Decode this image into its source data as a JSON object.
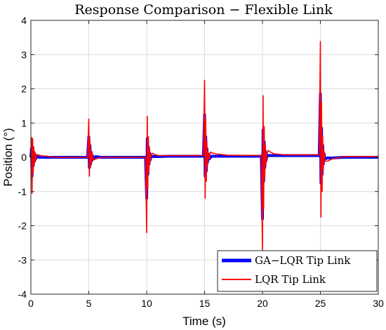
{
  "chart_data": {
    "type": "line",
    "title": "Response Comparison − Flexible Link",
    "xlabel": "Time (s)",
    "ylabel": "Position (°)",
    "xlim": [
      0,
      30
    ],
    "ylim": [
      -4,
      4
    ],
    "xticks": [
      "0",
      "5",
      "10",
      "15",
      "20",
      "25",
      "30"
    ],
    "yticks": [
      "-4",
      "-3",
      "-2",
      "-1",
      "0",
      "1",
      "2",
      "3",
      "4"
    ],
    "grid": true,
    "legend_position": "bottom-right",
    "series": [
      {
        "name": "GA−LQR Tip Link",
        "color": "#0000ff",
        "line_width": "thick",
        "x": [
          0,
          0.05,
          0.1,
          0.15,
          0.2,
          0.25,
          0.3,
          0.35,
          0.4,
          0.5,
          0.7,
          1.0,
          2.0,
          4.9,
          5.0,
          5.05,
          5.1,
          5.15,
          5.2,
          5.25,
          5.3,
          5.4,
          5.6,
          6.0,
          7.0,
          9.9,
          10.0,
          10.05,
          10.1,
          10.15,
          10.2,
          10.25,
          10.3,
          10.4,
          10.6,
          11.0,
          12.0,
          14.9,
          15.0,
          15.05,
          15.1,
          15.15,
          15.2,
          15.25,
          15.3,
          15.4,
          15.6,
          16.0,
          17.0,
          19.9,
          20.0,
          20.05,
          20.1,
          20.15,
          20.2,
          20.25,
          20.3,
          20.4,
          20.6,
          21.0,
          22.0,
          24.9,
          25.0,
          25.05,
          25.1,
          25.15,
          25.2,
          25.25,
          25.3,
          25.4,
          25.6,
          26.0,
          27.0,
          30.0
        ],
        "y": [
          0,
          0.25,
          -0.55,
          0.3,
          -0.25,
          0.15,
          -0.12,
          0.08,
          -0.05,
          0.02,
          0.0,
          0.0,
          0.0,
          0.0,
          0.6,
          -0.3,
          0.35,
          -0.2,
          0.15,
          -0.1,
          0.06,
          -0.03,
          0.02,
          0.0,
          0.0,
          0.0,
          -1.2,
          0.55,
          -0.5,
          0.3,
          -0.2,
          0.12,
          -0.08,
          0.04,
          0.02,
          0.02,
          0.03,
          0.03,
          1.25,
          -0.55,
          0.6,
          -0.4,
          0.25,
          -0.15,
          0.1,
          -0.05,
          0.03,
          0.03,
          0.03,
          0.03,
          -1.8,
          0.8,
          -0.7,
          0.45,
          -0.3,
          0.18,
          -0.1,
          0.06,
          0.05,
          0.05,
          0.05,
          0.05,
          1.85,
          -0.75,
          0.85,
          -0.5,
          0.35,
          -0.2,
          0.12,
          -0.05,
          -0.02,
          -0.02,
          0.0,
          0.0
        ]
      },
      {
        "name": "LQR Tip Link",
        "color": "#ff0000",
        "line_width": "thin",
        "x": [
          0,
          0.05,
          0.1,
          0.15,
          0.2,
          0.25,
          0.3,
          0.35,
          0.4,
          0.5,
          0.6,
          0.8,
          1.0,
          1.5,
          2.0,
          4.9,
          5.0,
          5.05,
          5.1,
          5.15,
          5.2,
          5.25,
          5.3,
          5.4,
          5.5,
          5.7,
          6.0,
          7.0,
          9.9,
          10.0,
          10.05,
          10.1,
          10.15,
          10.2,
          10.25,
          10.3,
          10.4,
          10.5,
          10.7,
          11.0,
          12.0,
          14.9,
          15.0,
          15.05,
          15.1,
          15.15,
          15.2,
          15.25,
          15.3,
          15.4,
          15.5,
          15.7,
          16.0,
          17.0,
          19.9,
          20.0,
          20.05,
          20.1,
          20.15,
          20.2,
          20.25,
          20.3,
          20.4,
          20.5,
          20.7,
          21.0,
          22.0,
          24.9,
          25.0,
          25.05,
          25.1,
          25.15,
          25.2,
          25.25,
          25.3,
          25.4,
          25.5,
          25.7,
          26.0,
          27.0,
          30.0
        ],
        "y": [
          0,
          0.58,
          -1.05,
          0.55,
          -0.45,
          0.3,
          -0.2,
          0.15,
          -0.1,
          0.06,
          0.08,
          0.05,
          0.04,
          0.03,
          0.0,
          0.0,
          1.12,
          -0.55,
          0.5,
          -0.3,
          0.2,
          -0.15,
          0.1,
          -0.08,
          -0.06,
          -0.04,
          0.0,
          0.0,
          0.0,
          -2.2,
          1.2,
          -0.9,
          0.6,
          -0.4,
          0.25,
          -0.15,
          0.1,
          0.12,
          0.08,
          0.05,
          0.05,
          0.05,
          2.25,
          -1.2,
          1.1,
          -0.7,
          0.45,
          -0.25,
          0.15,
          -0.05,
          0.15,
          0.12,
          0.1,
          0.06,
          0.05,
          -2.8,
          1.8,
          -1.5,
          0.9,
          -0.6,
          0.35,
          -0.2,
          0.12,
          0.2,
          0.15,
          0.1,
          0.07,
          0.07,
          3.38,
          -1.75,
          1.6,
          -1.0,
          0.6,
          -0.35,
          0.2,
          -0.1,
          -0.12,
          -0.1,
          -0.05,
          0.02,
          0.02
        ]
      }
    ]
  }
}
